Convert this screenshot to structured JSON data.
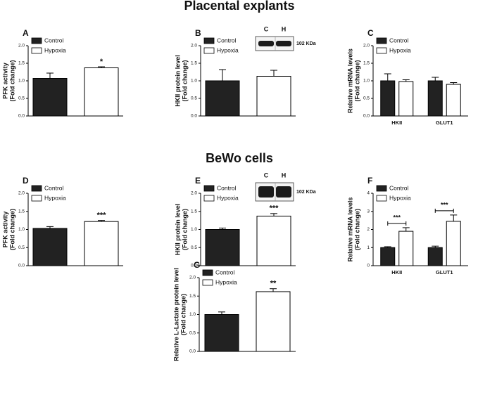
{
  "sections": [
    "Placental explants",
    "BeWo cells"
  ],
  "chart_data": [
    {
      "type": "bar",
      "label": "A",
      "ylabel": [
        "PFK activity",
        "(Fold change)"
      ],
      "categories": [
        null
      ],
      "series": [
        {
          "name": "Control",
          "color": "#222222",
          "values": [
            1.07
          ],
          "errors": [
            0.15
          ]
        },
        {
          "name": "Hypoxia",
          "color": "#ffffff",
          "values": [
            1.37
          ],
          "errors": [
            0.03
          ]
        }
      ],
      "significance": [
        "*"
      ],
      "ylim": [
        0,
        2
      ],
      "yticks": [
        {
          "value": 0,
          "label": "0.0"
        },
        0.5,
        {
          "value": 1,
          "label": "1.0"
        },
        1.5,
        {
          "value": 2,
          "label": "2.0"
        }
      ]
    },
    {
      "type": "bar",
      "label": "B",
      "ylabel": [
        "HKII protein level",
        "(Fold change)"
      ],
      "categories": [
        null
      ],
      "series": [
        {
          "name": "Control",
          "color": "#222222",
          "values": [
            1.0
          ],
          "errors": [
            0.32
          ]
        },
        {
          "name": "Hypoxia",
          "color": "#ffffff",
          "values": [
            1.13
          ],
          "errors": [
            0.17
          ]
        }
      ],
      "blot": {
        "lanes": [
          "C",
          "H"
        ],
        "size": "102 KDa"
      },
      "ylim": [
        0,
        2
      ],
      "yticks": [
        {
          "value": 0,
          "label": "0.0"
        },
        0.5,
        {
          "value": 1,
          "label": "1.0"
        },
        1.5,
        {
          "value": 2,
          "label": "2.0"
        }
      ]
    },
    {
      "type": "bar",
      "label": "C",
      "ylabel": [
        "Relative mRNA levels",
        "(Fold change)"
      ],
      "categories": [
        "HKII",
        "GLUT1"
      ],
      "series": [
        {
          "name": "Control",
          "color": "#222222",
          "values": [
            1.0,
            1.0
          ],
          "errors": [
            0.2,
            0.1
          ]
        },
        {
          "name": "Hypoxia",
          "color": "#ffffff",
          "values": [
            0.98,
            0.9
          ],
          "errors": [
            0.05,
            0.05
          ]
        }
      ],
      "ylim": [
        0,
        2
      ],
      "yticks": [
        {
          "value": 0,
          "label": "0.0"
        },
        0.5,
        {
          "value": 1,
          "label": "1.0"
        },
        1.5,
        {
          "value": 2,
          "label": "2.0"
        }
      ]
    },
    {
      "type": "bar",
      "label": "D",
      "ylabel": [
        "PFK activity",
        "(Fold change)"
      ],
      "categories": [
        null
      ],
      "series": [
        {
          "name": "Control",
          "color": "#222222",
          "values": [
            1.03
          ],
          "errors": [
            0.05
          ]
        },
        {
          "name": "Hypoxia",
          "color": "#ffffff",
          "values": [
            1.22
          ],
          "errors": [
            0.03
          ]
        }
      ],
      "significance": [
        "***"
      ],
      "ylim": [
        0,
        2
      ],
      "yticks": [
        {
          "value": 0,
          "label": "0.0"
        },
        0.5,
        {
          "value": 1,
          "label": "1.0"
        },
        1.5,
        {
          "value": 2,
          "label": "2.0"
        }
      ]
    },
    {
      "type": "bar",
      "label": "E",
      "ylabel": [
        "HKII protein level",
        "(Fold change)"
      ],
      "categories": [
        null
      ],
      "series": [
        {
          "name": "Control",
          "color": "#222222",
          "values": [
            1.0
          ],
          "errors": [
            0.04
          ]
        },
        {
          "name": "Hypoxia",
          "color": "#ffffff",
          "values": [
            1.37
          ],
          "errors": [
            0.07
          ]
        }
      ],
      "significance": [
        "***"
      ],
      "blot": {
        "lanes": [
          "C",
          "H"
        ],
        "size": "102 KDa"
      },
      "ylim": [
        0,
        2
      ],
      "yticks": [
        {
          "value": 0,
          "label": "0.0"
        },
        0.5,
        {
          "value": 1,
          "label": "1.0"
        },
        1.5,
        {
          "value": 2,
          "label": "2.0"
        }
      ]
    },
    {
      "type": "bar",
      "label": "F",
      "ylabel": [
        "Relative mRNA levels",
        "(Fold change)"
      ],
      "categories": [
        "HKII",
        "GLUT1"
      ],
      "series": [
        {
          "name": "Control",
          "color": "#222222",
          "values": [
            1.0,
            1.0
          ],
          "errors": [
            0.05,
            0.08
          ]
        },
        {
          "name": "Hypoxia",
          "color": "#ffffff",
          "values": [
            1.9,
            2.45
          ],
          "errors": [
            0.2,
            0.35
          ]
        }
      ],
      "significance": [
        "***",
        "***"
      ],
      "ylim": [
        0,
        4
      ],
      "yticks": [
        0,
        1,
        2,
        3,
        4
      ]
    },
    {
      "type": "bar",
      "label": "G",
      "ylabel": [
        "Relative L-Lactate protein level",
        "(Fold change)"
      ],
      "categories": [
        null
      ],
      "series": [
        {
          "name": "Control",
          "color": "#222222",
          "values": [
            1.0
          ],
          "errors": [
            0.07
          ]
        },
        {
          "name": "Hypoxia",
          "color": "#ffffff",
          "values": [
            1.62
          ],
          "errors": [
            0.08
          ]
        }
      ],
      "significance": [
        "**"
      ],
      "ylim": [
        0,
        2
      ],
      "yticks": [
        {
          "value": 0,
          "label": "0.0"
        },
        0.5,
        {
          "value": 1,
          "label": "1.0"
        },
        1.5,
        {
          "value": 2,
          "label": "2.0"
        }
      ]
    }
  ]
}
